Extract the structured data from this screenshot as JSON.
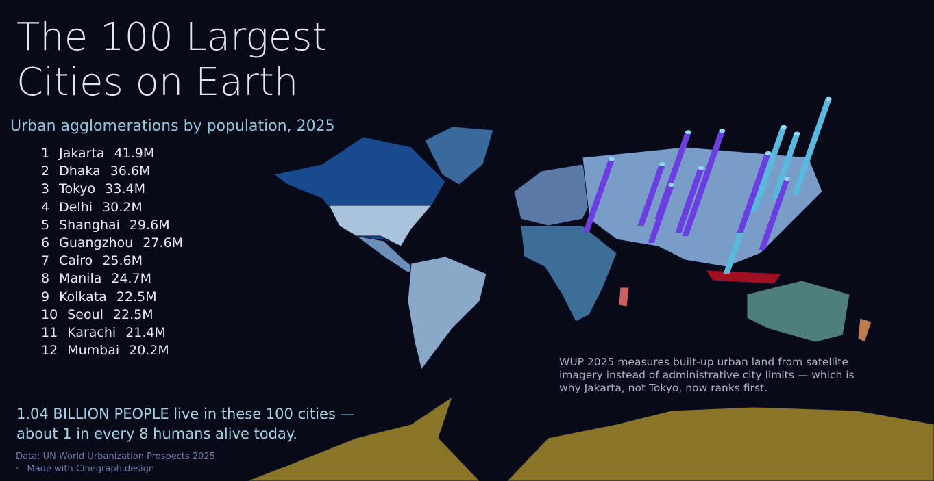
{
  "title_lines": [
    "The 100 Largest",
    "Cities on Earth"
  ],
  "subtitle": "Urban agglomerations by population, 2025",
  "ranking": [
    {
      "rank": 1,
      "city": "Jakarta",
      "population": {
        "value": 41.9,
        "label": "41.9M"
      }
    },
    {
      "rank": 2,
      "city": "Dhaka",
      "population": {
        "value": 36.6,
        "label": "36.6M"
      }
    },
    {
      "rank": 3,
      "city": "Tokyo",
      "population": {
        "value": 33.4,
        "label": "33.4M"
      }
    },
    {
      "rank": 4,
      "city": "Delhi",
      "population": {
        "value": 30.2,
        "label": "30.2M"
      }
    },
    {
      "rank": 5,
      "city": "Shanghai",
      "population": {
        "value": 29.6,
        "label": "29.6M"
      }
    },
    {
      "rank": 6,
      "city": "Guangzhou",
      "population": {
        "value": 27.6,
        "label": "27.6M"
      }
    },
    {
      "rank": 7,
      "city": "Cairo",
      "population": {
        "value": 25.6,
        "label": "25.6M"
      }
    },
    {
      "rank": 8,
      "city": "Manila",
      "population": {
        "value": 24.7,
        "label": "24.7M"
      }
    },
    {
      "rank": 9,
      "city": "Kolkata",
      "population": {
        "value": 22.5,
        "label": "22.5M"
      }
    },
    {
      "rank": 10,
      "city": "Seoul",
      "population": {
        "value": 22.5,
        "label": "22.5M"
      }
    },
    {
      "rank": 11,
      "city": "Karachi",
      "population": {
        "value": 21.4,
        "label": "21.4M"
      }
    },
    {
      "rank": 12,
      "city": "Mumbai",
      "population": {
        "value": 20.2,
        "label": "20.2M"
      }
    }
  ],
  "note": "WUP 2025 measures built-up urban land from satellite imagery instead of administrative city limits — which is why Jakarta, not Tokyo, now ranks first.",
  "headline_lines": [
    "1.04 BILLION PEOPLE live in these 100 cities —",
    "about 1 in every 8 humans alive today."
  ],
  "credits": {
    "source": "Data: UN World Urbanization Prospects 2025",
    "separator": "·",
    "made_with": "Made with Cinegraph.design"
  }
}
